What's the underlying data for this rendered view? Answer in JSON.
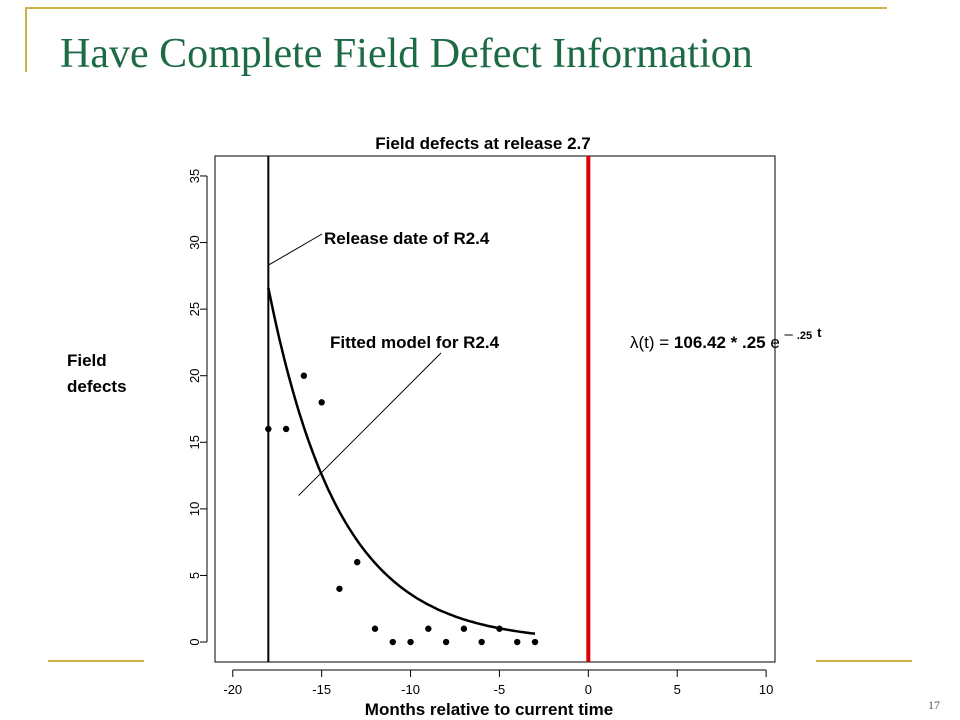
{
  "slide": {
    "title": "Have Complete Field Defect Information",
    "number": "17",
    "accent_color": "#c9b347",
    "title_color": "#1d6b45"
  },
  "chart_data": {
    "type": "scatter",
    "title": "Field defects at release 2.7",
    "xlabel": "Months relative to current time",
    "ylabel_line1": "Field",
    "ylabel_line2": "defects",
    "xlim": [
      -21,
      10.5
    ],
    "ylim": [
      -1.5,
      36.5
    ],
    "xticks": [
      -20,
      -15,
      -10,
      -5,
      0,
      5,
      10
    ],
    "yticks": [
      0,
      5,
      10,
      15,
      20,
      25,
      30,
      35
    ],
    "points": [
      {
        "x": -18,
        "y": 16
      },
      {
        "x": -17,
        "y": 16
      },
      {
        "x": -16,
        "y": 20
      },
      {
        "x": -15,
        "y": 18
      },
      {
        "x": -14,
        "y": 4
      },
      {
        "x": -13,
        "y": 6
      },
      {
        "x": -12,
        "y": 1
      },
      {
        "x": -11,
        "y": 0
      },
      {
        "x": -10,
        "y": 0
      },
      {
        "x": -9,
        "y": 1
      },
      {
        "x": -8,
        "y": 0
      },
      {
        "x": -7,
        "y": 1
      },
      {
        "x": -6,
        "y": 0
      },
      {
        "x": -5,
        "y": 1
      },
      {
        "x": -4,
        "y": 0
      },
      {
        "x": -3,
        "y": 0
      }
    ],
    "fitted_curve": {
      "label": "Fitted model for R2.4",
      "x_start": -18,
      "x_end": -3,
      "coef": 106.42,
      "rate": 0.25,
      "color": "#000000"
    },
    "release_line": {
      "x": -18,
      "label": "Release date of R2.4",
      "color": "#000000"
    },
    "current_line": {
      "x": 0,
      "color": "#dd0000"
    },
    "formula": {
      "prefix": "λ(t) = ",
      "bold_part": "106.42 * .25",
      "suffix": " e ",
      "exp_sign": "–",
      "exp_rate": ".25",
      "exp_var": "t"
    }
  }
}
